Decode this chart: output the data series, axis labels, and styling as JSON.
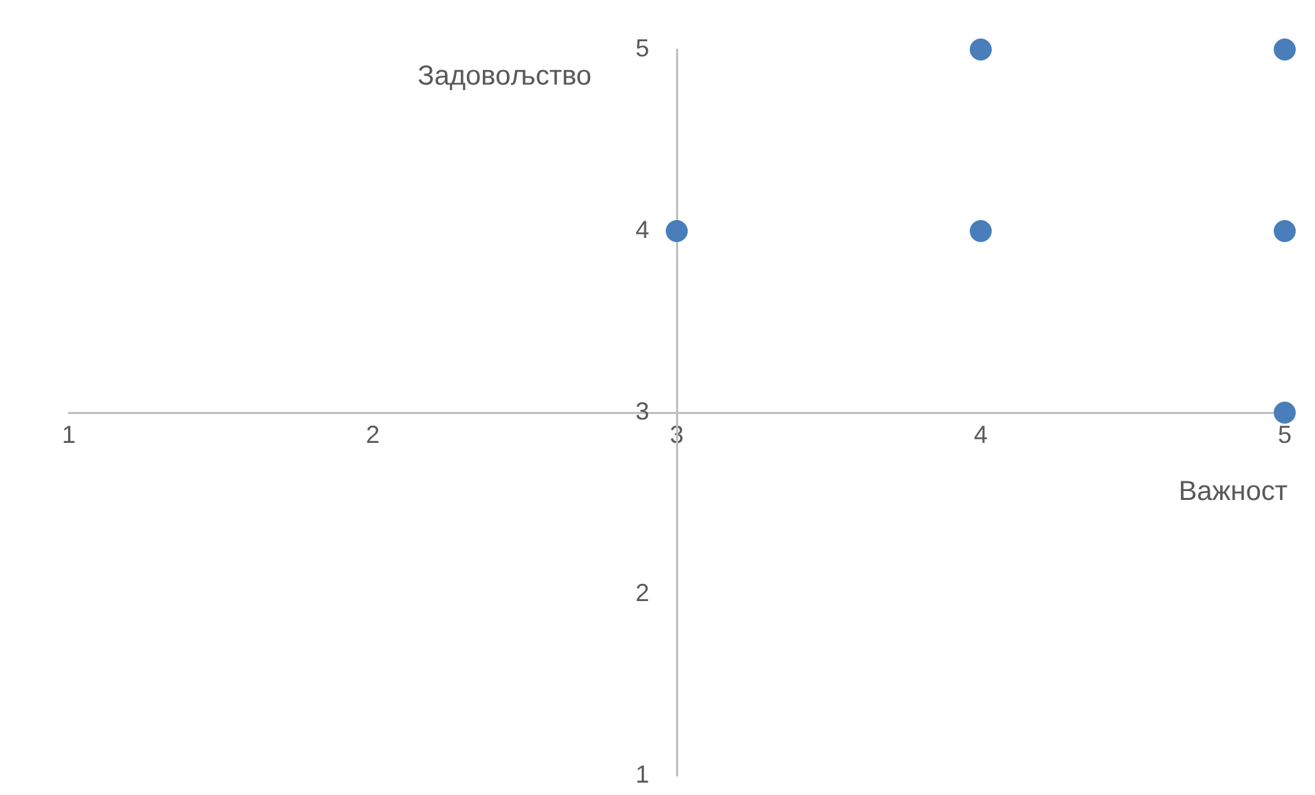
{
  "chart_data": {
    "type": "scatter",
    "xlabel": "Важност",
    "ylabel": "Задовољство",
    "series": [
      {
        "color": "#4a7ebb",
        "x": [
          3,
          4,
          4,
          5,
          5,
          5
        ],
        "values": [
          4,
          5,
          4,
          5,
          4,
          3
        ]
      }
    ],
    "xlim": [
      1,
      5
    ],
    "ylim": [
      1,
      5
    ],
    "xticks": [
      1,
      2,
      3,
      4,
      5
    ],
    "yticks": [
      1,
      2,
      3,
      4,
      5
    ],
    "grid": false,
    "legend": false,
    "marker": "circle"
  }
}
